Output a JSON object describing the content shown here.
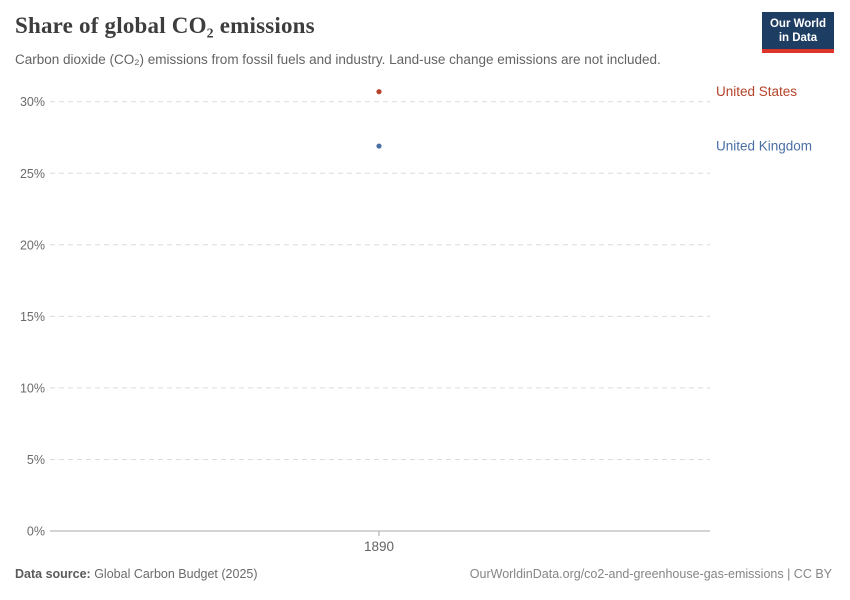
{
  "header": {
    "title": "Share of global CO₂ emissions",
    "subtitle": "Carbon dioxide (CO₂) emissions from fossil fuels and industry. Land-use change emissions are not included."
  },
  "logo": {
    "line1": "Our World",
    "line2": "in Data",
    "bg_color": "#1d3d63",
    "accent_color": "#dc352b",
    "text_color": "#ffffff"
  },
  "chart_data": {
    "type": "scatter",
    "title": "Share of global CO₂ emissions",
    "xlabel": "",
    "ylabel": "",
    "x": [
      1890
    ],
    "x_tick_labels": [
      "1890"
    ],
    "series": [
      {
        "name": "United States",
        "color": "#B5432A",
        "values": [
          30.7
        ]
      },
      {
        "name": "United Kingdom",
        "color": "#4A6FA5",
        "values": [
          26.9
        ]
      }
    ],
    "ylim": [
      0,
      32
    ],
    "yticks": [
      0,
      5,
      10,
      15,
      20,
      25,
      30
    ],
    "ytick_suffix": "%",
    "grid": "horizontal dashed gridlines, solid baseline at 0%",
    "legend_position": "entity labels right of plot, colored to match points",
    "colors": {
      "gridline": "#dcdcdc",
      "axis_line": "#a8a8a8",
      "tick_label": "#6b6b6b",
      "x_tick_label": "#636363"
    }
  },
  "footer": {
    "source_label": "Data source:",
    "source_value": " Global Carbon Budget (2025)",
    "right_note": "OurWorldinData.org/co2-and-greenhouse-gas-emissions | CC BY"
  }
}
